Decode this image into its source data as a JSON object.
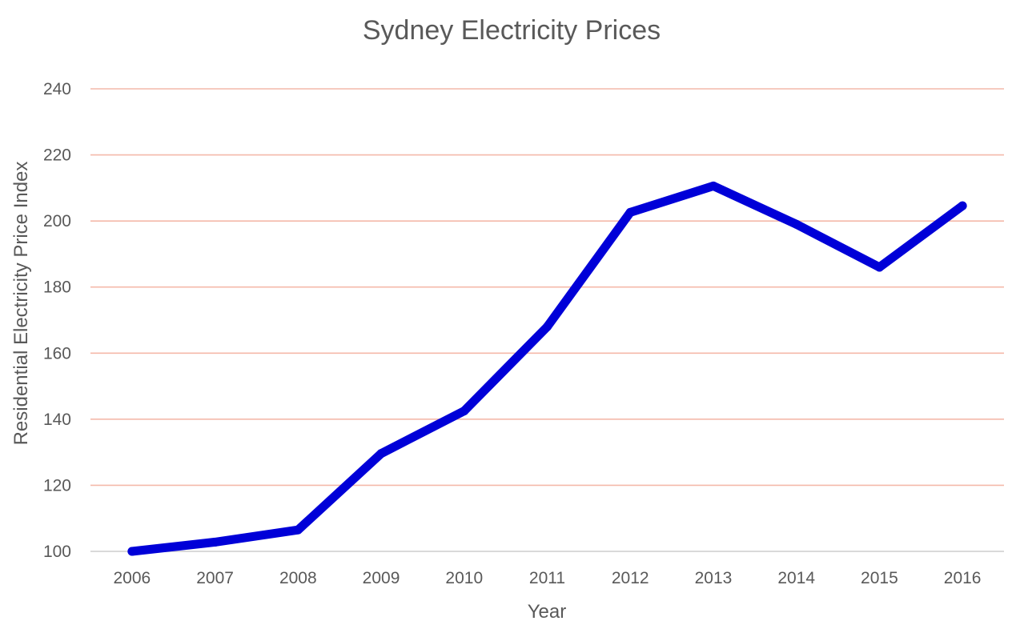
{
  "chart_data": {
    "type": "line",
    "title": "Sydney Electricity Prices",
    "xlabel": "Year",
    "ylabel": "Residential Electricity Price Index",
    "categories": [
      "2006",
      "2007",
      "2008",
      "2009",
      "2010",
      "2011",
      "2012",
      "2013",
      "2014",
      "2015",
      "2016"
    ],
    "series": [
      {
        "name": "",
        "values": [
          100,
          102.8,
          106.5,
          129.6,
          142.5,
          168,
          202.6,
          210.6,
          199,
          186,
          204.6
        ]
      }
    ],
    "ylim": [
      100,
      240
    ],
    "yticks": [
      100,
      120,
      140,
      160,
      180,
      200,
      220,
      240
    ],
    "grid": true,
    "legend": "none",
    "colors": {
      "line": "#0000d8",
      "gridline": "#f4b9aa",
      "baseline": "#d9d9d9",
      "text": "#595959"
    }
  }
}
